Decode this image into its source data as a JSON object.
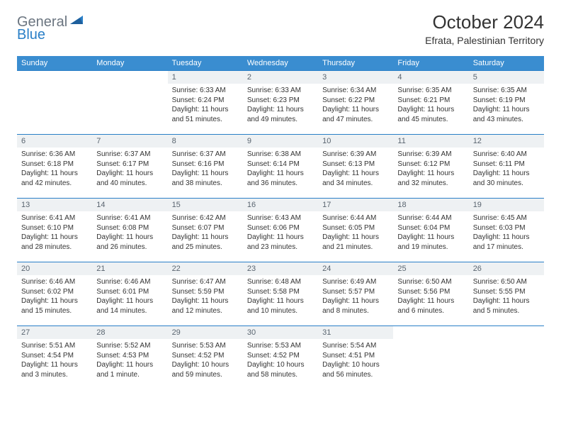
{
  "brand": {
    "word1": "General",
    "word2": "Blue",
    "color1": "#6b7580",
    "color2": "#2a7fc7"
  },
  "title": {
    "month_year": "October 2024",
    "location": "Efrata, Palestinian Territory"
  },
  "colors": {
    "header_bg": "#3a8dd0",
    "header_text": "#ffffff",
    "cell_border": "#2a7fc7",
    "daynum_bg": "#eef1f3",
    "daynum_text": "#5a6570",
    "body_text": "#333333",
    "background": "#ffffff"
  },
  "day_names": [
    "Sunday",
    "Monday",
    "Tuesday",
    "Wednesday",
    "Thursday",
    "Friday",
    "Saturday"
  ],
  "grid": [
    [
      null,
      null,
      {
        "n": "1",
        "sr": "6:33 AM",
        "ss": "6:24 PM",
        "dl": "11 hours and 51 minutes."
      },
      {
        "n": "2",
        "sr": "6:33 AM",
        "ss": "6:23 PM",
        "dl": "11 hours and 49 minutes."
      },
      {
        "n": "3",
        "sr": "6:34 AM",
        "ss": "6:22 PM",
        "dl": "11 hours and 47 minutes."
      },
      {
        "n": "4",
        "sr": "6:35 AM",
        "ss": "6:21 PM",
        "dl": "11 hours and 45 minutes."
      },
      {
        "n": "5",
        "sr": "6:35 AM",
        "ss": "6:19 PM",
        "dl": "11 hours and 43 minutes."
      }
    ],
    [
      {
        "n": "6",
        "sr": "6:36 AM",
        "ss": "6:18 PM",
        "dl": "11 hours and 42 minutes."
      },
      {
        "n": "7",
        "sr": "6:37 AM",
        "ss": "6:17 PM",
        "dl": "11 hours and 40 minutes."
      },
      {
        "n": "8",
        "sr": "6:37 AM",
        "ss": "6:16 PM",
        "dl": "11 hours and 38 minutes."
      },
      {
        "n": "9",
        "sr": "6:38 AM",
        "ss": "6:14 PM",
        "dl": "11 hours and 36 minutes."
      },
      {
        "n": "10",
        "sr": "6:39 AM",
        "ss": "6:13 PM",
        "dl": "11 hours and 34 minutes."
      },
      {
        "n": "11",
        "sr": "6:39 AM",
        "ss": "6:12 PM",
        "dl": "11 hours and 32 minutes."
      },
      {
        "n": "12",
        "sr": "6:40 AM",
        "ss": "6:11 PM",
        "dl": "11 hours and 30 minutes."
      }
    ],
    [
      {
        "n": "13",
        "sr": "6:41 AM",
        "ss": "6:10 PM",
        "dl": "11 hours and 28 minutes."
      },
      {
        "n": "14",
        "sr": "6:41 AM",
        "ss": "6:08 PM",
        "dl": "11 hours and 26 minutes."
      },
      {
        "n": "15",
        "sr": "6:42 AM",
        "ss": "6:07 PM",
        "dl": "11 hours and 25 minutes."
      },
      {
        "n": "16",
        "sr": "6:43 AM",
        "ss": "6:06 PM",
        "dl": "11 hours and 23 minutes."
      },
      {
        "n": "17",
        "sr": "6:44 AM",
        "ss": "6:05 PM",
        "dl": "11 hours and 21 minutes."
      },
      {
        "n": "18",
        "sr": "6:44 AM",
        "ss": "6:04 PM",
        "dl": "11 hours and 19 minutes."
      },
      {
        "n": "19",
        "sr": "6:45 AM",
        "ss": "6:03 PM",
        "dl": "11 hours and 17 minutes."
      }
    ],
    [
      {
        "n": "20",
        "sr": "6:46 AM",
        "ss": "6:02 PM",
        "dl": "11 hours and 15 minutes."
      },
      {
        "n": "21",
        "sr": "6:46 AM",
        "ss": "6:01 PM",
        "dl": "11 hours and 14 minutes."
      },
      {
        "n": "22",
        "sr": "6:47 AM",
        "ss": "5:59 PM",
        "dl": "11 hours and 12 minutes."
      },
      {
        "n": "23",
        "sr": "6:48 AM",
        "ss": "5:58 PM",
        "dl": "11 hours and 10 minutes."
      },
      {
        "n": "24",
        "sr": "6:49 AM",
        "ss": "5:57 PM",
        "dl": "11 hours and 8 minutes."
      },
      {
        "n": "25",
        "sr": "6:50 AM",
        "ss": "5:56 PM",
        "dl": "11 hours and 6 minutes."
      },
      {
        "n": "26",
        "sr": "6:50 AM",
        "ss": "5:55 PM",
        "dl": "11 hours and 5 minutes."
      }
    ],
    [
      {
        "n": "27",
        "sr": "5:51 AM",
        "ss": "4:54 PM",
        "dl": "11 hours and 3 minutes."
      },
      {
        "n": "28",
        "sr": "5:52 AM",
        "ss": "4:53 PM",
        "dl": "11 hours and 1 minute."
      },
      {
        "n": "29",
        "sr": "5:53 AM",
        "ss": "4:52 PM",
        "dl": "10 hours and 59 minutes."
      },
      {
        "n": "30",
        "sr": "5:53 AM",
        "ss": "4:52 PM",
        "dl": "10 hours and 58 minutes."
      },
      {
        "n": "31",
        "sr": "5:54 AM",
        "ss": "4:51 PM",
        "dl": "10 hours and 56 minutes."
      },
      null,
      null
    ]
  ],
  "labels": {
    "sunrise": "Sunrise:",
    "sunset": "Sunset:",
    "daylight": "Daylight:"
  }
}
